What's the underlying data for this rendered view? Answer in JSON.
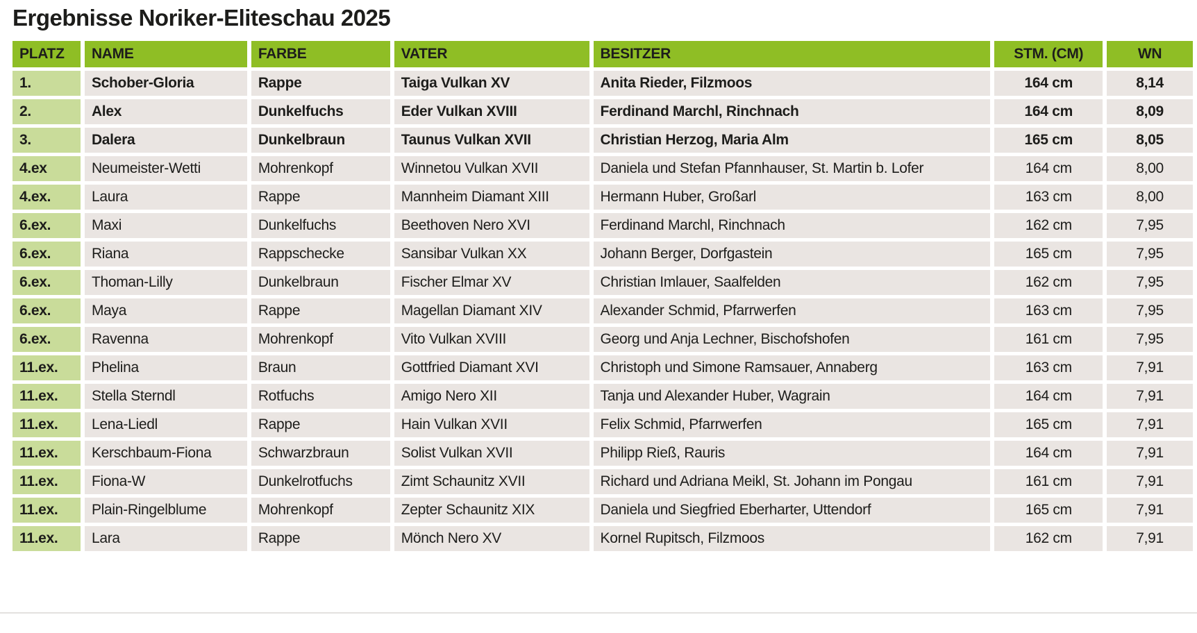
{
  "title": "Ergebnisse Noriker-Eliteschau 2025",
  "colors": {
    "header_green": "#8FBE25",
    "rank_green": "#C9DC9A",
    "row_bg": "#EAE5E2",
    "text": "#1d1d1b",
    "page_bg": "#FFFFFF"
  },
  "table": {
    "columns": [
      {
        "key": "platz",
        "label": "PLATZ",
        "align": "left"
      },
      {
        "key": "name",
        "label": "NAME",
        "align": "left"
      },
      {
        "key": "farbe",
        "label": "FARBE",
        "align": "left"
      },
      {
        "key": "vater",
        "label": "VATER",
        "align": "left"
      },
      {
        "key": "besitzer",
        "label": "BESITZER",
        "align": "left"
      },
      {
        "key": "stm",
        "label": "STM. (CM)",
        "align": "center"
      },
      {
        "key": "wn",
        "label": "WN",
        "align": "center"
      }
    ],
    "rows": [
      {
        "platz": "1.",
        "name": "Schober-Gloria",
        "farbe": "Rappe",
        "vater": "Taiga Vulkan XV",
        "besitzer": "Anita Rieder, Filzmoos",
        "stm": "164 cm",
        "wn": "8,14",
        "bold": true
      },
      {
        "platz": "2.",
        "name": "Alex",
        "farbe": "Dunkelfuchs",
        "vater": "Eder Vulkan XVIII",
        "besitzer": "Ferdinand Marchl, Rinchnach",
        "stm": "164 cm",
        "wn": "8,09",
        "bold": true
      },
      {
        "platz": "3.",
        "name": "Dalera",
        "farbe": "Dunkelbraun",
        "vater": "Taunus Vulkan XVII",
        "besitzer": "Christian Herzog, Maria Alm",
        "stm": "165 cm",
        "wn": "8,05",
        "bold": true
      },
      {
        "platz": "4.ex",
        "name": "Neumeister-Wetti",
        "farbe": "Mohrenkopf",
        "vater": "Winnetou Vulkan XVII",
        "besitzer": "Daniela und Stefan Pfannhauser, St. Martin b. Lofer",
        "stm": "164 cm",
        "wn": "8,00",
        "bold": false
      },
      {
        "platz": "4.ex.",
        "name": "Laura",
        "farbe": "Rappe",
        "vater": "Mannheim Diamant XIII",
        "besitzer": "Hermann Huber, Großarl",
        "stm": "163 cm",
        "wn": "8,00",
        "bold": false
      },
      {
        "platz": "6.ex.",
        "name": "Maxi",
        "farbe": "Dunkelfuchs",
        "vater": "Beethoven Nero XVI",
        "besitzer": "Ferdinand Marchl, Rinchnach",
        "stm": "162 cm",
        "wn": "7,95",
        "bold": false
      },
      {
        "platz": "6.ex.",
        "name": "Riana",
        "farbe": "Rappschecke",
        "vater": "Sansibar Vulkan XX",
        "besitzer": "Johann Berger, Dorfgastein",
        "stm": "165 cm",
        "wn": "7,95",
        "bold": false
      },
      {
        "platz": "6.ex.",
        "name": "Thoman-Lilly",
        "farbe": "Dunkelbraun",
        "vater": "Fischer Elmar XV",
        "besitzer": "Christian Imlauer, Saalfelden",
        "stm": "162 cm",
        "wn": "7,95",
        "bold": false
      },
      {
        "platz": "6.ex.",
        "name": "Maya",
        "farbe": "Rappe",
        "vater": "Magellan Diamant XIV",
        "besitzer": "Alexander Schmid, Pfarrwerfen",
        "stm": "163 cm",
        "wn": "7,95",
        "bold": false
      },
      {
        "platz": "6.ex.",
        "name": "Ravenna",
        "farbe": "Mohrenkopf",
        "vater": "Vito Vulkan XVIII",
        "besitzer": "Georg und Anja Lechner, Bischofshofen",
        "stm": "161 cm",
        "wn": "7,95",
        "bold": false
      },
      {
        "platz": "11.ex.",
        "name": "Phelina",
        "farbe": "Braun",
        "vater": "Gottfried Diamant XVI",
        "besitzer": "Christoph und Simone Ramsauer, Annaberg",
        "stm": "163 cm",
        "wn": "7,91",
        "bold": false
      },
      {
        "platz": "11.ex.",
        "name": "Stella Sterndl",
        "farbe": "Rotfuchs",
        "vater": "Amigo Nero XII",
        "besitzer": "Tanja und Alexander Huber, Wagrain",
        "stm": "164 cm",
        "wn": "7,91",
        "bold": false
      },
      {
        "platz": "11.ex.",
        "name": "Lena-Liedl",
        "farbe": "Rappe",
        "vater": "Hain Vulkan XVII",
        "besitzer": "Felix Schmid, Pfarrwerfen",
        "stm": "165 cm",
        "wn": "7,91",
        "bold": false
      },
      {
        "platz": "11.ex.",
        "name": "Kerschbaum-Fiona",
        "farbe": "Schwarzbraun",
        "vater": "Solist Vulkan XVII",
        "besitzer": "Philipp Rieß, Rauris",
        "stm": "164 cm",
        "wn": "7,91",
        "bold": false
      },
      {
        "platz": "11.ex.",
        "name": "Fiona-W",
        "farbe": "Dunkelrotfuchs",
        "vater": "Zimt Schaunitz XVII",
        "besitzer": "Richard und Adriana Meikl, St. Johann im Pongau",
        "stm": "161 cm",
        "wn": "7,91",
        "bold": false
      },
      {
        "platz": "11.ex.",
        "name": "Plain-Ringelblume",
        "farbe": "Mohrenkopf",
        "vater": "Zepter Schaunitz XIX",
        "besitzer": "Daniela und Siegfried Eberharter, Uttendorf",
        "stm": "165 cm",
        "wn": "7,91",
        "bold": false
      },
      {
        "platz": "11.ex.",
        "name": "Lara",
        "farbe": "Rappe",
        "vater": "Mönch Nero XV",
        "besitzer": "Kornel Rupitsch, Filzmoos",
        "stm": "162 cm",
        "wn": "7,91",
        "bold": false
      }
    ]
  }
}
